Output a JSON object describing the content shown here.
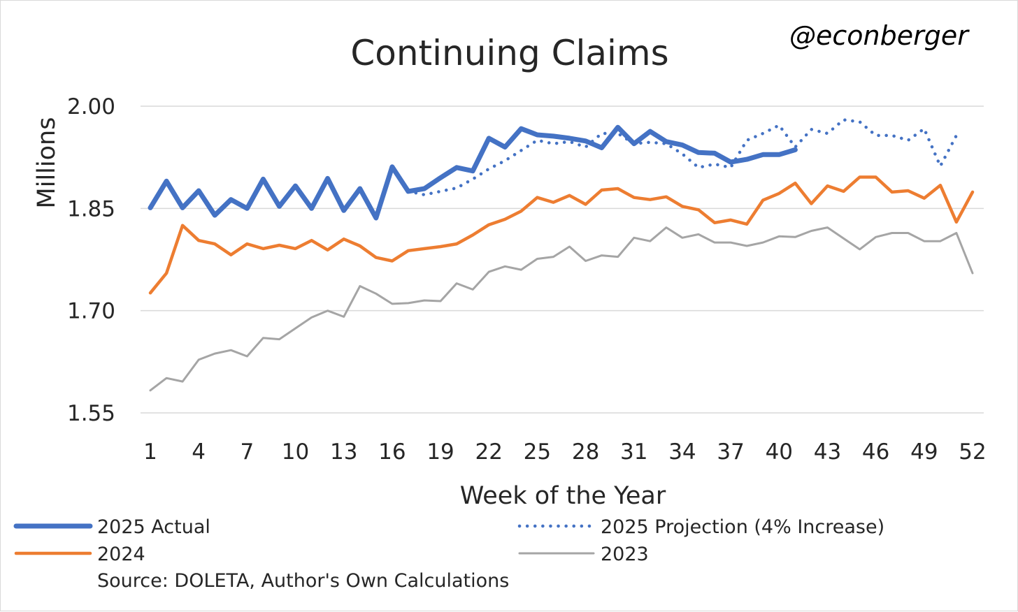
{
  "chart_data": {
    "type": "line",
    "title": "Continuing Claims",
    "watermark": "@econberger",
    "xlabel": "Week of the Year",
    "ylabel": "Millions",
    "ylim": [
      1.55,
      2.0
    ],
    "xlim": [
      1,
      52
    ],
    "yticks": [
      "1.55",
      "1.70",
      "1.85",
      "2.00"
    ],
    "xticks": [
      "1",
      "4",
      "7",
      "10",
      "13",
      "16",
      "19",
      "22",
      "25",
      "28",
      "31",
      "34",
      "37",
      "40",
      "43",
      "46",
      "49",
      "52"
    ],
    "grid": true,
    "legend_position": "bottom",
    "source": "Source: DOLETA, Author's Own Calculations",
    "series": [
      {
        "name": "2023",
        "color": "#a5a5a5",
        "style": "solid",
        "width": 3,
        "start_week": 1,
        "values": [
          1.583,
          1.601,
          1.596,
          1.628,
          1.637,
          1.642,
          1.633,
          1.66,
          1.658,
          1.674,
          1.69,
          1.7,
          1.691,
          1.736,
          1.725,
          1.71,
          1.711,
          1.715,
          1.714,
          1.74,
          1.731,
          1.757,
          1.765,
          1.76,
          1.776,
          1.779,
          1.794,
          1.773,
          1.781,
          1.779,
          1.807,
          1.802,
          1.822,
          1.807,
          1.812,
          1.8,
          1.8,
          1.795,
          1.8,
          1.809,
          1.808,
          1.817,
          1.822,
          1.806,
          1.79,
          1.808,
          1.814,
          1.814,
          1.802,
          1.802,
          1.814,
          1.755
        ]
      },
      {
        "name": "2024",
        "color": "#ed7d31",
        "style": "solid",
        "width": 4.5,
        "start_week": 1,
        "values": [
          1.726,
          1.755,
          1.825,
          1.803,
          1.798,
          1.782,
          1.798,
          1.791,
          1.796,
          1.791,
          1.803,
          1.789,
          1.805,
          1.795,
          1.778,
          1.773,
          1.788,
          1.791,
          1.794,
          1.798,
          1.811,
          1.826,
          1.834,
          1.846,
          1.866,
          1.859,
          1.869,
          1.856,
          1.877,
          1.879,
          1.866,
          1.863,
          1.867,
          1.853,
          1.848,
          1.829,
          1.833,
          1.827,
          1.862,
          1.872,
          1.887,
          1.857,
          1.883,
          1.875,
          1.896,
          1.896,
          1.874,
          1.876,
          1.865,
          1.884,
          1.83,
          1.874
        ]
      },
      {
        "name": "2025 Projection (4% Increase)",
        "color": "#4472c4",
        "style": "dotted",
        "width": 4.5,
        "start_week": 17,
        "values": [
          1.875,
          1.87,
          1.875,
          1.88,
          1.893,
          1.908,
          1.92,
          1.935,
          1.95,
          1.945,
          1.948,
          1.94,
          1.96,
          1.96,
          1.945,
          1.947,
          1.945,
          1.93,
          1.91,
          1.915,
          1.91,
          1.95,
          1.96,
          1.972,
          1.94,
          1.966,
          1.96,
          1.98,
          1.977,
          1.957,
          1.957,
          1.95,
          1.967,
          1.912,
          1.957
        ]
      },
      {
        "name": "2025 Actual",
        "color": "#4472c4",
        "style": "solid",
        "width": 7,
        "start_week": 1,
        "values": [
          1.851,
          1.89,
          1.851,
          1.876,
          1.84,
          1.863,
          1.85,
          1.893,
          1.853,
          1.883,
          1.85,
          1.894,
          1.847,
          1.879,
          1.836,
          1.911,
          1.875,
          1.879,
          1.895,
          1.91,
          1.905,
          1.953,
          1.94,
          1.967,
          1.958,
          1.956,
          1.953,
          1.949,
          1.939,
          1.969,
          1.945,
          1.963,
          1.948,
          1.943,
          1.932,
          1.931,
          1.918,
          1.922,
          1.929,
          1.929,
          1.936
        ]
      }
    ]
  },
  "legend": [
    {
      "key": "2025 Actual",
      "label": "2025 Actual",
      "color": "#4472c4",
      "style": "solid",
      "width": 7
    },
    {
      "key": "2025 Projection",
      "label": "2025 Projection (4% Increase)",
      "color": "#4472c4",
      "style": "dotted",
      "width": 4.5
    },
    {
      "key": "2024",
      "label": "2024",
      "color": "#ed7d31",
      "style": "solid",
      "width": 4.5
    },
    {
      "key": "2023",
      "label": "2023",
      "color": "#a5a5a5",
      "style": "solid",
      "width": 3
    }
  ]
}
